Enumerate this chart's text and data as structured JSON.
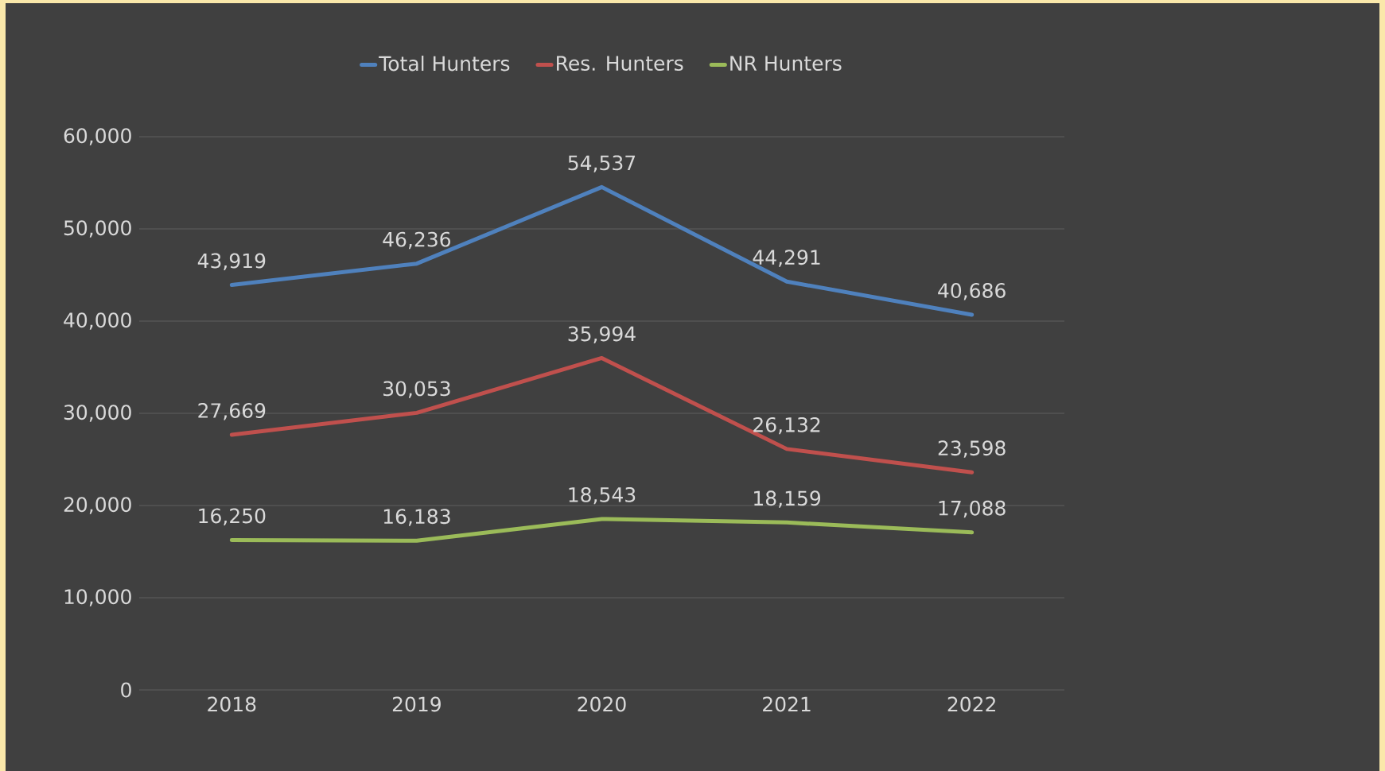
{
  "chart_data": {
    "type": "line",
    "categories": [
      "2018",
      "2019",
      "2020",
      "2021",
      "2022"
    ],
    "series": [
      {
        "name": "Total Hunters",
        "color": "#4f81bd",
        "values": [
          43919,
          46236,
          54537,
          44291,
          40686
        ],
        "value_labels": [
          "43,919",
          "46,236",
          "54,537",
          "44,291",
          "40,686"
        ]
      },
      {
        "name": "Res. Hunters",
        "color": "#c0504d",
        "values": [
          27669,
          30053,
          35994,
          26132,
          23598
        ],
        "value_labels": [
          "27,669",
          "30,053",
          "35,994",
          "26,132",
          "23,598"
        ]
      },
      {
        "name": "NR Hunters",
        "color": "#9bbb59",
        "values": [
          16250,
          16183,
          18543,
          18159,
          17088
        ],
        "value_labels": [
          "16,250",
          "16,183",
          "18,543",
          "18,159",
          "17,088"
        ]
      }
    ],
    "ylim": [
      0,
      60000
    ],
    "yticks": [
      {
        "value": 0,
        "label": "0"
      },
      {
        "value": 10000,
        "label": "10,000"
      },
      {
        "value": 20000,
        "label": "20,000"
      },
      {
        "value": 30000,
        "label": "30,000"
      },
      {
        "value": 40000,
        "label": "40,000"
      },
      {
        "value": 50000,
        "label": "50,000"
      },
      {
        "value": 60000,
        "label": "60,000"
      }
    ],
    "grid": "y",
    "legend": "top",
    "line_style": "solid"
  }
}
